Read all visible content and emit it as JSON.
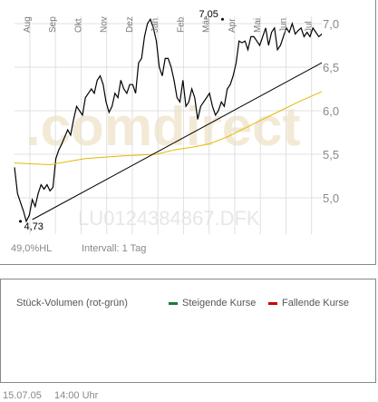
{
  "chart_data": {
    "type": "line",
    "x_tick_labels": [
      "Aug",
      "Sep",
      "Okt",
      "Nov",
      "Dez",
      "Jan",
      "Feb",
      "Mär",
      "Apr",
      "Mai",
      "Jun",
      "Jul"
    ],
    "y_ticks": [
      5.0,
      5.5,
      6.0,
      6.5,
      7.0
    ],
    "y_tick_labels": [
      "5,0",
      "5,5",
      "6,0",
      "6,5",
      "7,0"
    ],
    "ylim": [
      4.6,
      7.2
    ],
    "grid": true,
    "watermark": ".comdirect",
    "instrument_label": "LU0124384867.DFK",
    "annotations": [
      {
        "label": "4,73",
        "x": 1.0,
        "y": 4.73
      },
      {
        "label": "7,05",
        "x": 35.2,
        "y": 7.05
      }
    ],
    "series": [
      {
        "color": "#000000",
        "x": [
          0,
          0.5,
          1.0,
          1.5,
          2.0,
          2.5,
          3.0,
          3.5,
          4.0,
          4.5,
          5.0,
          5.5,
          6.0,
          6.5,
          7.0,
          7.5,
          8.0,
          8.5,
          9.0,
          9.5,
          10.0,
          10.5,
          11.0,
          11.5,
          12.0,
          12.5,
          13.0,
          13.5,
          14.0,
          14.5,
          15.0,
          15.5,
          16.0,
          16.5,
          17.0,
          17.5,
          18.0,
          18.5,
          19.0,
          19.5,
          20.0,
          20.5,
          21.0,
          21.5,
          22.0,
          22.5,
          23.0,
          23.5,
          24.0,
          24.5,
          25.0,
          25.5,
          26.0,
          26.5,
          27.0,
          27.5,
          28.0,
          28.5,
          29.0,
          29.5,
          30.0,
          30.5,
          31.0,
          31.5,
          32.0,
          32.5,
          33.0,
          33.5,
          34.0,
          34.5,
          35.0,
          35.5,
          36.0,
          36.5,
          37.0,
          37.5,
          38.0,
          38.5,
          39.0,
          39.5,
          40.0,
          40.5,
          41.0,
          41.5,
          42.0,
          42.5,
          43.0,
          43.5,
          44.0,
          44.5,
          45.0,
          45.5,
          46.0,
          46.5,
          47.0,
          47.5,
          48.0,
          48.5,
          49.0,
          49.5,
          50.0,
          50.5,
          51.0,
          51.5,
          52.0
        ],
        "values": [
          5.35,
          5.05,
          4.95,
          4.85,
          4.73,
          4.8,
          4.98,
          4.9,
          5.05,
          5.15,
          5.1,
          5.15,
          5.08,
          5.12,
          5.45,
          5.55,
          5.62,
          5.7,
          5.78,
          5.72,
          5.9,
          6.05,
          6.0,
          5.95,
          6.15,
          6.2,
          6.25,
          6.2,
          6.35,
          6.4,
          6.3,
          6.1,
          5.98,
          6.05,
          6.2,
          6.15,
          6.35,
          6.25,
          6.2,
          6.3,
          6.3,
          6.2,
          6.55,
          6.6,
          6.85,
          7.0,
          7.05,
          6.95,
          6.8,
          6.5,
          6.4,
          6.6,
          6.6,
          6.5,
          6.35,
          6.15,
          6.1,
          6.35,
          6.05,
          6.1,
          6.25,
          6.15,
          5.9,
          6.05,
          6.1,
          6.15,
          6.2,
          6.05,
          5.95,
          6.0,
          6.1,
          6.05,
          6.25,
          6.3,
          6.4,
          6.55,
          6.8,
          6.78,
          6.8,
          6.7,
          6.85,
          6.85,
          6.8,
          6.75,
          6.85,
          6.95,
          6.75,
          6.9,
          6.95,
          6.7,
          6.75,
          6.85,
          6.95,
          6.9,
          7.0,
          6.88,
          6.92,
          6.95,
          6.85,
          6.9,
          6.85,
          6.95,
          6.9,
          6.85,
          6.88
        ]
      },
      {
        "color": "#e6b800",
        "x": [
          0,
          6,
          12,
          18,
          24,
          27,
          30,
          33,
          36,
          39,
          42,
          45,
          48,
          52
        ],
        "values": [
          5.4,
          5.38,
          5.45,
          5.48,
          5.5,
          5.55,
          5.58,
          5.62,
          5.7,
          5.8,
          5.9,
          6.0,
          6.1,
          6.22
        ]
      },
      {
        "color": "#000000",
        "x": [
          3,
          52
        ],
        "values": [
          4.75,
          6.55
        ]
      }
    ]
  },
  "performance_text": "49,0%HL",
  "interval_text": "Intervall: 1 Tag",
  "volume_panel": {
    "title": "Stück-Volumen (rot-grün)",
    "legend_rising": "Steigende Kurse",
    "legend_falling": "Fallende Kurse",
    "rising_color": "#1a7a3a",
    "falling_color": "#cc0000"
  },
  "footer_date": "15.07.05",
  "footer_time": "14:00 Uhr"
}
